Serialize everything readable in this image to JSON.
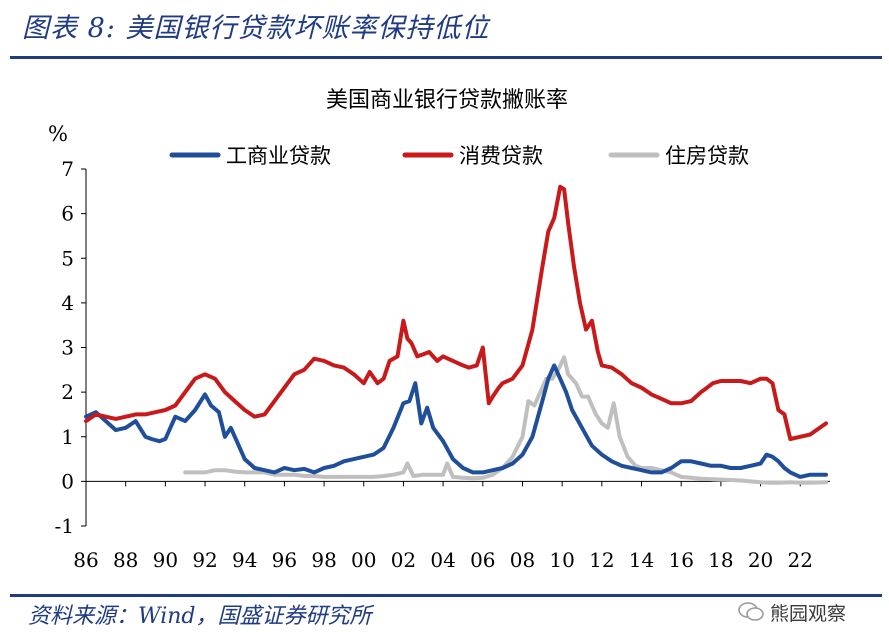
{
  "header": {
    "title": "图表 8:  美国银行贷款坏账率保持低位"
  },
  "footer": {
    "source": "资料来源：Wind，国盛证券研究所",
    "watermark": "熊园观察"
  },
  "colors": {
    "brand_blue": "#1f3b83",
    "commercial": "#1f4e9b",
    "consumer": "#c81a1a",
    "housing": "#bfbfbf"
  },
  "chart_data": {
    "type": "line",
    "title": "美国商业银行贷款撇账率",
    "ylabel": "%",
    "ylim": [
      -1,
      7
    ],
    "yticks": [
      -1,
      0,
      1,
      2,
      3,
      4,
      5,
      6,
      7
    ],
    "xlim": [
      1986,
      2023.5
    ],
    "xticks": [
      1986,
      1988,
      1990,
      1992,
      1994,
      1996,
      1998,
      2000,
      2002,
      2004,
      2006,
      2008,
      2010,
      2012,
      2014,
      2016,
      2018,
      2020,
      2022
    ],
    "xtick_labels": [
      "86",
      "88",
      "90",
      "92",
      "94",
      "96",
      "98",
      "00",
      "02",
      "04",
      "06",
      "08",
      "10",
      "12",
      "14",
      "16",
      "18",
      "20",
      "22"
    ],
    "grid": false,
    "legend": "top",
    "series": [
      {
        "name": "工商业贷款",
        "color": "#1f4e9b",
        "x": [
          1986,
          1986.5,
          1987,
          1987.5,
          1988,
          1988.5,
          1989,
          1989.3,
          1989.7,
          1990,
          1990.5,
          1991,
          1991.5,
          1992,
          1992.3,
          1992.7,
          1993,
          1993.3,
          1993.7,
          1994,
          1994.5,
          1995,
          1995.5,
          1996,
          1996.5,
          1997,
          1997.5,
          1998,
          1998.5,
          1999,
          1999.5,
          2000,
          2000.5,
          2001,
          2001.5,
          2002,
          2002.3,
          2002.6,
          2002.9,
          2003.2,
          2003.5,
          2004,
          2004.5,
          2005,
          2005.5,
          2006,
          2006.5,
          2007,
          2007.5,
          2008,
          2008.5,
          2009,
          2009.3,
          2009.6,
          2009.9,
          2010.2,
          2010.5,
          2011,
          2011.5,
          2012,
          2012.5,
          2013,
          2013.5,
          2014,
          2014.5,
          2015,
          2015.5,
          2016,
          2016.5,
          2017,
          2017.5,
          2018,
          2018.5,
          2019,
          2019.5,
          2020,
          2020.3,
          2020.6,
          2020.9,
          2021.2,
          2021.5,
          2022,
          2022.5,
          2023.3
        ],
        "y": [
          1.45,
          1.55,
          1.35,
          1.15,
          1.2,
          1.35,
          1.0,
          0.95,
          0.9,
          0.95,
          1.45,
          1.35,
          1.6,
          1.95,
          1.7,
          1.55,
          1.0,
          1.2,
          0.8,
          0.5,
          0.3,
          0.25,
          0.2,
          0.3,
          0.25,
          0.28,
          0.2,
          0.3,
          0.35,
          0.45,
          0.5,
          0.55,
          0.6,
          0.75,
          1.2,
          1.75,
          1.8,
          2.2,
          1.3,
          1.65,
          1.2,
          0.9,
          0.5,
          0.3,
          0.2,
          0.2,
          0.25,
          0.3,
          0.4,
          0.6,
          1.0,
          1.8,
          2.3,
          2.6,
          2.3,
          2.0,
          1.6,
          1.2,
          0.8,
          0.6,
          0.45,
          0.35,
          0.3,
          0.25,
          0.2,
          0.2,
          0.3,
          0.45,
          0.45,
          0.4,
          0.35,
          0.35,
          0.3,
          0.3,
          0.35,
          0.4,
          0.6,
          0.55,
          0.45,
          0.3,
          0.2,
          0.1,
          0.15,
          0.15
        ]
      },
      {
        "name": "消费贷款",
        "color": "#c81a1a",
        "x": [
          1986,
          1986.5,
          1987,
          1987.5,
          1988,
          1988.5,
          1989,
          1989.5,
          1990,
          1990.5,
          1991,
          1991.5,
          1992,
          1992.5,
          1993,
          1993.5,
          1994,
          1994.5,
          1995,
          1995.5,
          1996,
          1996.5,
          1997,
          1997.5,
          1998,
          1998.5,
          1999,
          1999.5,
          2000,
          2000.3,
          2000.7,
          2001,
          2001.3,
          2001.7,
          2002,
          2002.2,
          2002.4,
          2002.7,
          2003,
          2003.3,
          2003.7,
          2004,
          2004.5,
          2005,
          2005.3,
          2005.7,
          2006,
          2006.3,
          2006.5,
          2006.8,
          2007,
          2007.5,
          2008,
          2008.5,
          2009,
          2009.3,
          2009.6,
          2009.9,
          2010.1,
          2010.3,
          2010.6,
          2010.9,
          2011.2,
          2011.5,
          2011.8,
          2012,
          2012.5,
          2013,
          2013.5,
          2014,
          2014.5,
          2015,
          2015.5,
          2016,
          2016.5,
          2017,
          2017.3,
          2017.6,
          2018,
          2018.5,
          2019,
          2019.5,
          2020,
          2020.3,
          2020.6,
          2020.9,
          2021.2,
          2021.5,
          2022,
          2022.5,
          2023.3
        ],
        "y": [
          1.35,
          1.5,
          1.45,
          1.4,
          1.45,
          1.5,
          1.5,
          1.55,
          1.6,
          1.7,
          2.0,
          2.3,
          2.4,
          2.3,
          2.0,
          1.8,
          1.6,
          1.45,
          1.5,
          1.8,
          2.1,
          2.4,
          2.5,
          2.75,
          2.7,
          2.6,
          2.55,
          2.4,
          2.2,
          2.45,
          2.2,
          2.3,
          2.7,
          2.8,
          3.6,
          3.2,
          3.1,
          2.8,
          2.85,
          2.9,
          2.7,
          2.8,
          2.7,
          2.6,
          2.55,
          2.6,
          3.0,
          1.75,
          1.9,
          2.1,
          2.2,
          2.3,
          2.6,
          3.4,
          4.8,
          5.6,
          5.9,
          6.6,
          6.55,
          5.8,
          4.8,
          4.0,
          3.4,
          3.6,
          2.9,
          2.6,
          2.55,
          2.4,
          2.2,
          2.1,
          1.95,
          1.85,
          1.75,
          1.75,
          1.8,
          2.0,
          2.1,
          2.2,
          2.25,
          2.25,
          2.25,
          2.2,
          2.3,
          2.3,
          2.2,
          1.6,
          1.5,
          0.95,
          1.0,
          1.05,
          1.3
        ]
      },
      {
        "name": "住房贷款",
        "color": "#bfbfbf",
        "x": [
          1991,
          1991.5,
          1992,
          1992.5,
          1993,
          1993.5,
          1994,
          1994.5,
          1995,
          1995.5,
          1996,
          1996.5,
          1997,
          1997.5,
          1998,
          1998.5,
          1999,
          1999.5,
          2000,
          2000.5,
          2001,
          2001.5,
          2002,
          2002.2,
          2002.5,
          2003,
          2003.5,
          2004,
          2004.2,
          2004.5,
          2005,
          2005.5,
          2006,
          2006.5,
          2007,
          2007.5,
          2008,
          2008.3,
          2008.6,
          2008.9,
          2009.2,
          2009.5,
          2009.8,
          2010.1,
          2010.3,
          2010.7,
          2011,
          2011.3,
          2011.7,
          2012,
          2012.3,
          2012.6,
          2012.9,
          2013.3,
          2013.7,
          2014,
          2014.5,
          2015,
          2015.5,
          2016,
          2016.5,
          2017,
          2017.5,
          2018,
          2018.5,
          2019,
          2019.5,
          2020,
          2020.5,
          2021,
          2021.5,
          2022,
          2022.5,
          2023.3
        ],
        "y": [
          0.2,
          0.2,
          0.2,
          0.25,
          0.25,
          0.22,
          0.2,
          0.2,
          0.2,
          0.15,
          0.15,
          0.15,
          0.12,
          0.12,
          0.1,
          0.1,
          0.1,
          0.1,
          0.1,
          0.1,
          0.12,
          0.15,
          0.2,
          0.4,
          0.12,
          0.15,
          0.15,
          0.15,
          0.4,
          0.1,
          0.08,
          0.07,
          0.08,
          0.15,
          0.3,
          0.55,
          1.0,
          1.8,
          1.7,
          2.0,
          2.3,
          2.3,
          2.5,
          2.78,
          2.4,
          2.2,
          1.9,
          1.9,
          1.5,
          1.3,
          1.2,
          1.75,
          1.0,
          0.55,
          0.35,
          0.3,
          0.3,
          0.25,
          0.2,
          0.1,
          0.08,
          0.06,
          0.05,
          0.04,
          0.03,
          0.02,
          0.0,
          -0.02,
          -0.03,
          -0.03,
          -0.02,
          -0.03,
          -0.03,
          -0.02
        ]
      }
    ]
  }
}
